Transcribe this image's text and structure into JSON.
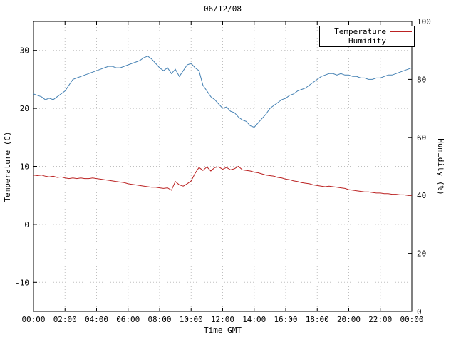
{
  "title": "06/12/08",
  "x_axis_label": "Time GMT",
  "legend": [
    {
      "label": "Temperature"
    },
    {
      "label": "Humidity"
    }
  ],
  "colors": {
    "temperature": "#bb2222",
    "humidity": "#4682b4",
    "grid": "#bfbfbf",
    "border": "#000000"
  },
  "chart_data": {
    "type": "line",
    "title": "06/12/08",
    "xlabel": "Time GMT",
    "x_range_hours": [
      0,
      24
    ],
    "x_tick_hours": [
      0,
      2,
      4,
      6,
      8,
      10,
      12,
      14,
      16,
      18,
      20,
      22,
      24
    ],
    "x_tick_labels": [
      "00:00",
      "02:00",
      "04:00",
      "06:00",
      "08:00",
      "10:00",
      "12:00",
      "14:00",
      "16:00",
      "18:00",
      "20:00",
      "22:00",
      "00:00"
    ],
    "left_axis": {
      "label": "Temperature (C)",
      "range": [
        -15,
        35
      ],
      "ticks": [
        -10,
        0,
        10,
        20,
        30
      ]
    },
    "right_axis": {
      "label": "Humidity (%)",
      "range": [
        0,
        100
      ],
      "ticks": [
        0,
        20,
        40,
        60,
        80,
        100
      ]
    },
    "sample_interval_hours": 0.25,
    "series": [
      {
        "name": "Temperature",
        "axis": "left",
        "color": "#bb2222",
        "values": [
          8.5,
          8.4,
          8.5,
          8.3,
          8.2,
          8.3,
          8.1,
          8.2,
          8.0,
          7.9,
          8.0,
          7.9,
          8.0,
          7.9,
          7.9,
          8.0,
          7.9,
          7.8,
          7.7,
          7.6,
          7.5,
          7.4,
          7.3,
          7.2,
          7.0,
          6.9,
          6.8,
          6.7,
          6.6,
          6.5,
          6.4,
          6.4,
          6.3,
          6.2,
          6.3,
          5.9,
          7.4,
          6.8,
          6.6,
          7.0,
          7.5,
          8.8,
          9.8,
          9.3,
          9.9,
          9.2,
          9.8,
          9.9,
          9.5,
          9.8,
          9.4,
          9.6,
          10.0,
          9.4,
          9.3,
          9.2,
          9.0,
          8.9,
          8.7,
          8.5,
          8.4,
          8.3,
          8.1,
          8.0,
          7.8,
          7.7,
          7.5,
          7.4,
          7.2,
          7.1,
          7.0,
          6.8,
          6.7,
          6.6,
          6.5,
          6.6,
          6.5,
          6.4,
          6.3,
          6.2,
          6.0,
          5.9,
          5.8,
          5.7,
          5.6,
          5.6,
          5.5,
          5.4,
          5.4,
          5.3,
          5.3,
          5.2,
          5.2,
          5.1,
          5.1,
          5.0,
          5.0
        ]
      },
      {
        "name": "Humidity",
        "axis": "right",
        "color": "#4682b4",
        "values": [
          75,
          74.5,
          74,
          73,
          73.5,
          73,
          74,
          75,
          76,
          78,
          80,
          80.5,
          81,
          81.5,
          82,
          82.5,
          83,
          83.5,
          84,
          84.5,
          84.5,
          84,
          84,
          84.5,
          85,
          85.5,
          86,
          86.5,
          87.5,
          88,
          87,
          85.5,
          84,
          83,
          84,
          82,
          83.5,
          81,
          83,
          85,
          85.5,
          84,
          83,
          78,
          76,
          74,
          73,
          71.5,
          70,
          70.5,
          69,
          68.5,
          67,
          66,
          65.5,
          64,
          63.5,
          65,
          66.5,
          68,
          70,
          71,
          72,
          73,
          73.5,
          74.5,
          75,
          76,
          76.5,
          77,
          78,
          79,
          80,
          81,
          81.5,
          82,
          82,
          81.5,
          82,
          81.5,
          81.5,
          81,
          81,
          80.5,
          80.5,
          80,
          80,
          80.5,
          80.5,
          81,
          81.5,
          81.5,
          82,
          82.5,
          83,
          83.5,
          84
        ]
      }
    ]
  }
}
